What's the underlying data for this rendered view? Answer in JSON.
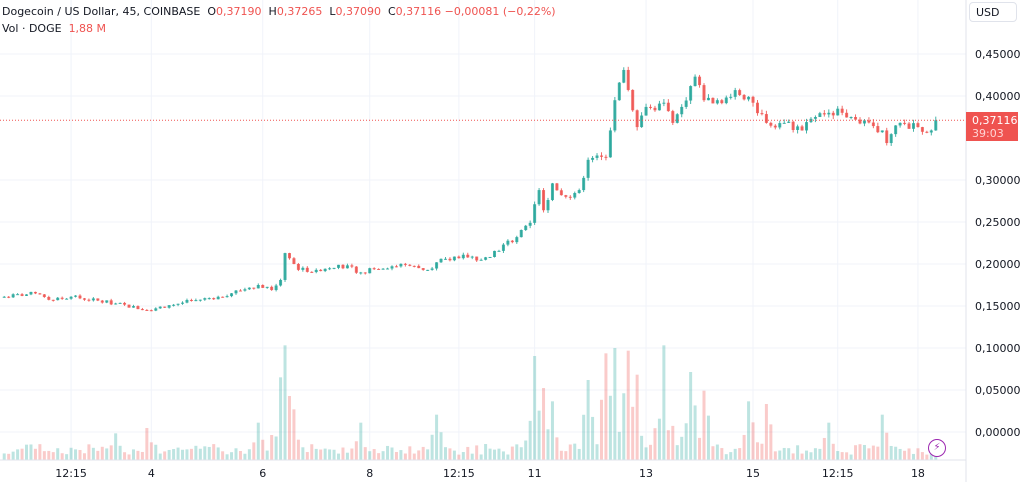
{
  "legend": {
    "symbol": "Dogecoin / US Dollar, 45, COINBASE",
    "o_label": "O",
    "o_value": "0,37190",
    "h_label": "H",
    "h_value": "0,37265",
    "l_label": "L",
    "l_value": "0,37090",
    "c_label": "C",
    "c_value": "0,37116",
    "change": "−0,00081 (−0,22%)",
    "vol_label": "Vol · DOGE",
    "vol_value": "1,88 M"
  },
  "currency_button": "USD",
  "last_price": {
    "value": "0,37116",
    "countdown": "39:03"
  },
  "colors": {
    "up": "#26a69a",
    "down": "#ef5350",
    "grid": "#f0f3fa",
    "last_line": "#ef5350",
    "bolt": "#9c27b0"
  },
  "icons": {
    "bolt": "lightning-icon"
  },
  "chart_data": {
    "type": "candlestick",
    "title": "",
    "interval": "45",
    "bars": 210,
    "last_close": 0.37116,
    "ylim": [
      -0.033,
      0.5
    ],
    "y_ticks": [
      {
        "value": 0.45,
        "label": "0,45000"
      },
      {
        "value": 0.4,
        "label": "0,40000"
      },
      {
        "value": 0.3,
        "label": "0,30000"
      },
      {
        "value": 0.25,
        "label": "0,25000"
      },
      {
        "value": 0.2,
        "label": "0,20000"
      },
      {
        "value": 0.15,
        "label": "0,15000"
      },
      {
        "value": 0.1,
        "label": "0,10000"
      },
      {
        "value": 0.05,
        "label": "0,05000"
      },
      {
        "value": 0.0,
        "label": "0,00000"
      }
    ],
    "x_ticks": [
      {
        "bar": 15,
        "label": "12:15"
      },
      {
        "bar": 33,
        "label": "4"
      },
      {
        "bar": 58,
        "label": "6"
      },
      {
        "bar": 82,
        "label": "8"
      },
      {
        "bar": 102,
        "label": "12:15"
      },
      {
        "bar": 119,
        "label": "11"
      },
      {
        "bar": 144,
        "label": "13"
      },
      {
        "bar": 168,
        "label": "15"
      },
      {
        "bar": 187,
        "label": "12:15"
      },
      {
        "bar": 205,
        "label": "18"
      }
    ],
    "close_by_bar": [
      [
        0,
        0.161
      ],
      [
        7,
        0.165
      ],
      [
        11,
        0.157
      ],
      [
        15,
        0.161
      ],
      [
        25,
        0.153
      ],
      [
        32,
        0.145
      ],
      [
        37,
        0.151
      ],
      [
        43,
        0.157
      ],
      [
        48,
        0.161
      ],
      [
        57,
        0.175
      ],
      [
        60,
        0.169
      ],
      [
        62,
        0.181
      ],
      [
        63,
        0.213
      ],
      [
        66,
        0.193
      ],
      [
        70,
        0.193
      ],
      [
        75,
        0.199
      ],
      [
        81,
        0.189
      ],
      [
        82,
        0.195
      ],
      [
        90,
        0.199
      ],
      [
        95,
        0.193
      ],
      [
        97,
        0.202
      ],
      [
        103,
        0.211
      ],
      [
        107,
        0.205
      ],
      [
        108,
        0.208
      ],
      [
        115,
        0.232
      ],
      [
        118,
        0.249
      ],
      [
        120,
        0.288
      ],
      [
        121,
        0.264
      ],
      [
        123,
        0.296
      ],
      [
        126,
        0.28
      ],
      [
        129,
        0.288
      ],
      [
        131,
        0.324
      ],
      [
        135,
        0.327
      ],
      [
        136,
        0.359
      ],
      [
        137,
        0.395
      ],
      [
        139,
        0.431
      ],
      [
        141,
        0.383
      ],
      [
        142,
        0.363
      ],
      [
        144,
        0.387
      ],
      [
        146,
        0.383
      ],
      [
        148,
        0.392
      ],
      [
        150,
        0.368
      ],
      [
        152,
        0.387
      ],
      [
        155,
        0.423
      ],
      [
        157,
        0.395
      ],
      [
        160,
        0.395
      ],
      [
        163,
        0.399
      ],
      [
        164,
        0.407
      ],
      [
        167,
        0.399
      ],
      [
        168,
        0.392
      ],
      [
        171,
        0.368
      ],
      [
        175,
        0.368
      ],
      [
        179,
        0.359
      ],
      [
        182,
        0.375
      ],
      [
        185,
        0.38
      ],
      [
        188,
        0.38
      ],
      [
        190,
        0.375
      ],
      [
        193,
        0.371
      ],
      [
        197,
        0.359
      ],
      [
        198,
        0.344
      ],
      [
        201,
        0.368
      ],
      [
        205,
        0.363
      ],
      [
        208,
        0.359
      ],
      [
        209,
        0.37116
      ]
    ],
    "volume_unit": "M",
    "volume_base": 4,
    "volume_peaks_by_bar": [
      [
        25,
        10
      ],
      [
        32,
        12
      ],
      [
        57,
        14
      ],
      [
        62,
        31
      ],
      [
        63,
        43
      ],
      [
        64,
        24
      ],
      [
        65,
        19
      ],
      [
        80,
        14
      ],
      [
        97,
        17
      ],
      [
        119,
        39
      ],
      [
        121,
        27
      ],
      [
        123,
        22
      ],
      [
        131,
        30
      ],
      [
        135,
        40
      ],
      [
        137,
        42
      ],
      [
        140,
        41
      ],
      [
        142,
        32
      ],
      [
        148,
        43
      ],
      [
        154,
        33
      ],
      [
        157,
        26
      ],
      [
        167,
        22
      ],
      [
        171,
        21
      ],
      [
        185,
        14
      ],
      [
        197,
        17
      ],
      [
        209,
        1.88
      ]
    ]
  }
}
